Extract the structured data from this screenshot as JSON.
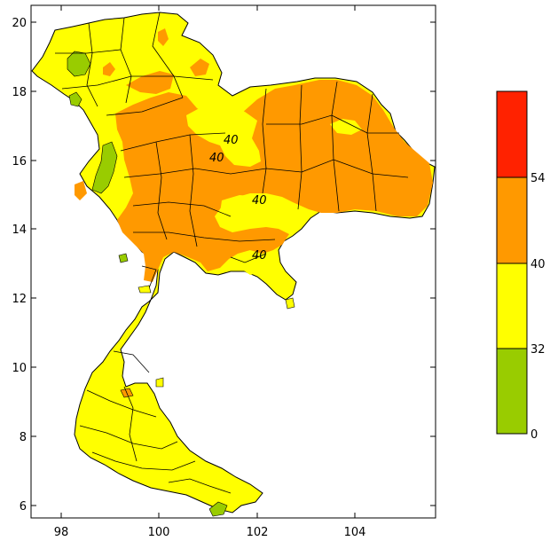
{
  "map": {
    "x_ticks": [
      "98",
      "100",
      "102",
      "104"
    ],
    "y_ticks": [
      "6",
      "8",
      "10",
      "12",
      "14",
      "16",
      "18",
      "20"
    ],
    "contour_labels": [
      "40",
      "40",
      "40",
      "40"
    ]
  },
  "legend": {
    "classes": [
      {
        "range": "0-32",
        "color": "#99cc00"
      },
      {
        "range": "32-40",
        "color": "#ffff00"
      },
      {
        "range": "40-54",
        "color": "#ff9900"
      },
      {
        "range": "54+",
        "color": "#ff2200"
      }
    ],
    "labels": [
      "54",
      "40",
      "32",
      "0"
    ]
  },
  "colors": {
    "green": "#99cc00",
    "yellow": "#ffff00",
    "orange": "#ff9900",
    "red": "#ff2200"
  }
}
